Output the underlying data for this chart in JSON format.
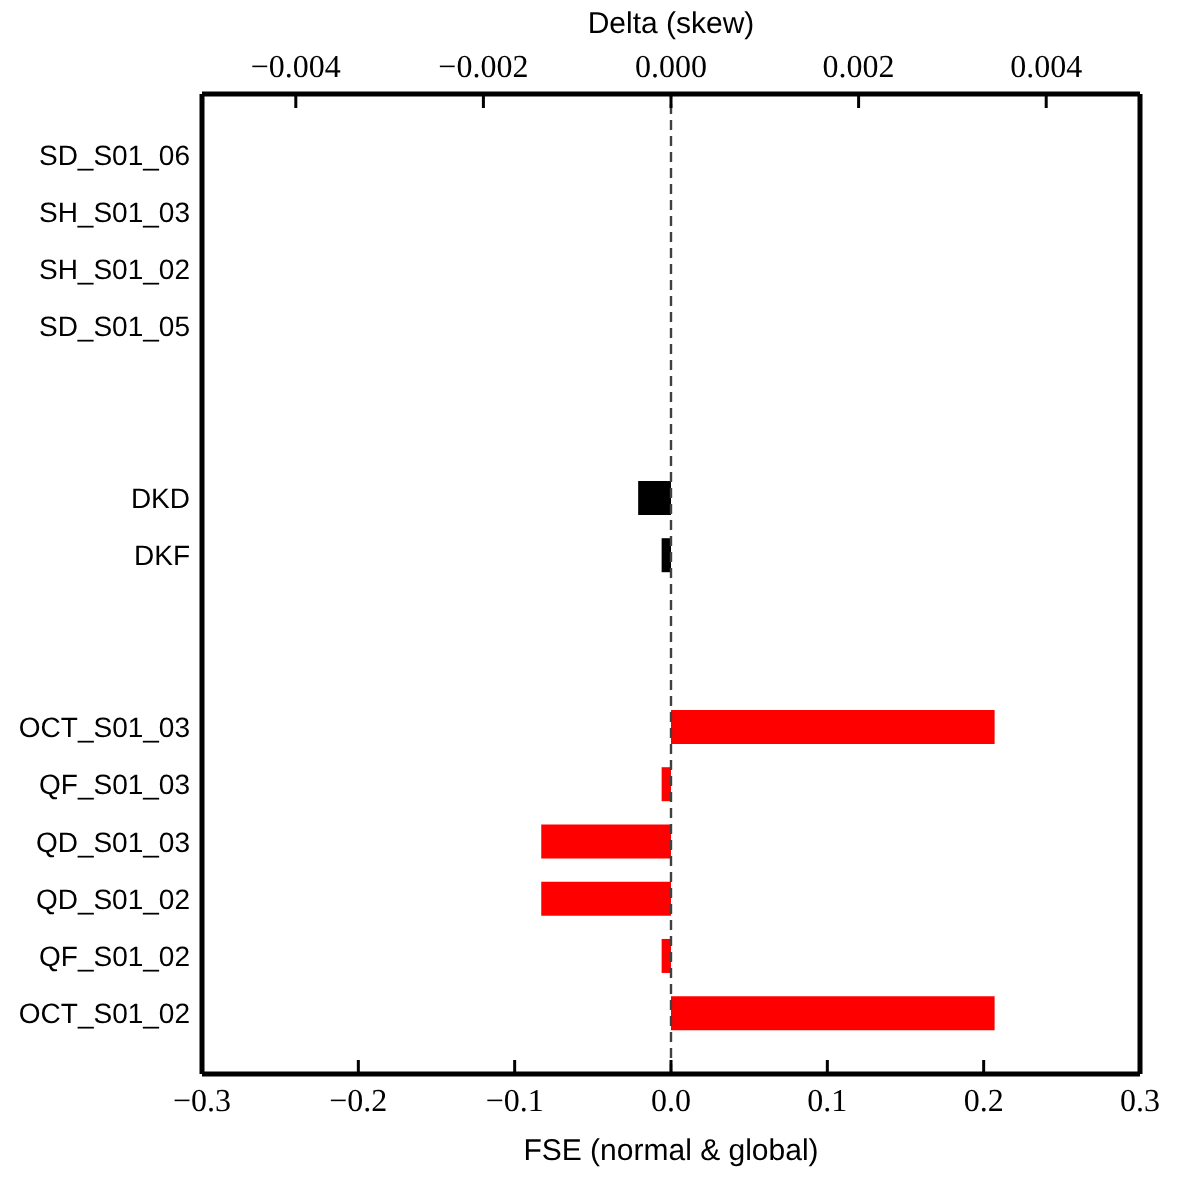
{
  "chart_data": {
    "type": "bar",
    "orientation": "horizontal",
    "xlabel": "FSE (normal & global)",
    "x2label": "Delta (skew)",
    "categories": [
      "SD_S01_06",
      "SH_S01_03",
      "SH_S01_02",
      "SD_S01_05",
      null,
      null,
      "DKD",
      "DKF",
      null,
      null,
      "OCT_S01_03",
      "QF_S01_03",
      "QD_S01_03",
      "QD_S01_02",
      "QF_S01_02",
      "OCT_S01_02"
    ],
    "series": [
      {
        "color": "#ff0000",
        "values": [
          null,
          null,
          null,
          null,
          null,
          null,
          null,
          null,
          null,
          null,
          0.207,
          -0.006,
          -0.083,
          -0.083,
          -0.006,
          0.207
        ]
      },
      {
        "color": "#000000",
        "axis": "x2",
        "values": [
          null,
          null,
          null,
          null,
          null,
          null,
          -0.00035,
          -0.0001,
          null,
          null,
          null,
          null,
          null,
          null,
          null,
          null
        ]
      }
    ],
    "xlim": [
      -0.3,
      0.3
    ],
    "xticks": [
      {
        "value": -0.3,
        "label": "−0.3"
      },
      {
        "value": -0.2,
        "label": "−0.2"
      },
      {
        "value": -0.1,
        "label": "−0.1"
      },
      {
        "value": 0,
        "label": "0.0"
      },
      0.1,
      0.2,
      0.3
    ],
    "x2lim": [
      -0.005,
      0.005
    ],
    "x2ticks": [
      {
        "value": -0.004,
        "label": "−0.004"
      },
      {
        "value": -0.002,
        "label": "−0.002"
      },
      {
        "value": 0,
        "label": "0.000"
      },
      0.002,
      0.004
    ],
    "ref_lines": [
      {
        "axis": "x",
        "value": 0,
        "color": "#404040",
        "line_style": "dashed"
      }
    ]
  }
}
